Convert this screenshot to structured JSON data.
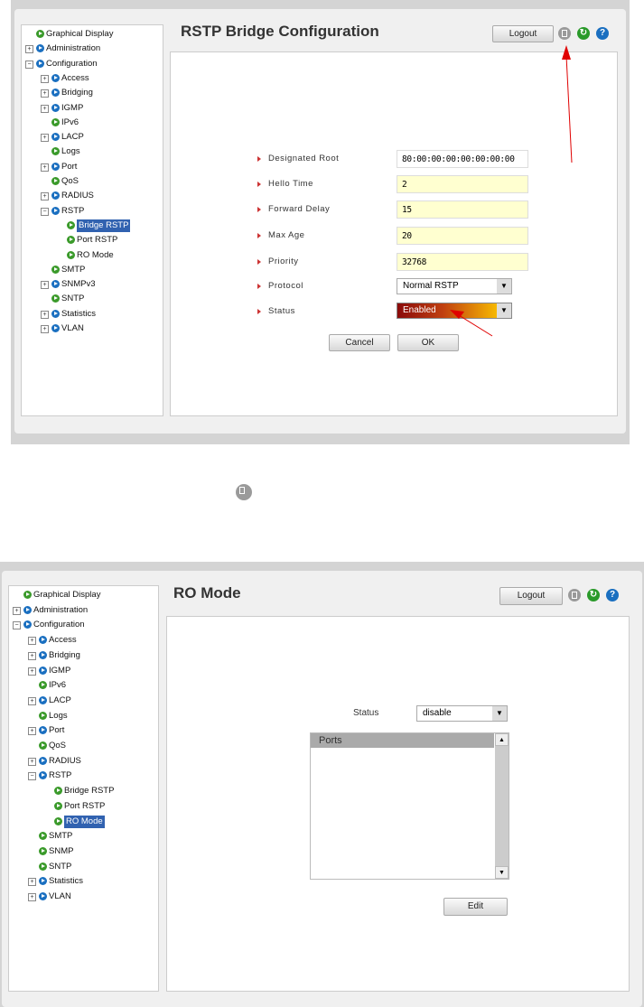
{
  "screen1": {
    "title": "RSTP Bridge Configuration",
    "logout": "Logout",
    "tree": [
      {
        "label": "Graphical Display",
        "level": 0,
        "exp": "",
        "color": "green"
      },
      {
        "label": "Administration",
        "level": 0,
        "exp": "+",
        "color": "blue"
      },
      {
        "label": "Configuration",
        "level": 0,
        "exp": "-",
        "color": "blue"
      },
      {
        "label": "Access",
        "level": 1,
        "exp": "+",
        "color": "blue"
      },
      {
        "label": "Bridging",
        "level": 1,
        "exp": "+",
        "color": "blue"
      },
      {
        "label": "IGMP",
        "level": 1,
        "exp": "+",
        "color": "blue"
      },
      {
        "label": "IPv6",
        "level": 1,
        "exp": "",
        "color": "green"
      },
      {
        "label": "LACP",
        "level": 1,
        "exp": "+",
        "color": "blue"
      },
      {
        "label": "Logs",
        "level": 1,
        "exp": "",
        "color": "green"
      },
      {
        "label": "Port",
        "level": 1,
        "exp": "+",
        "color": "blue"
      },
      {
        "label": "QoS",
        "level": 1,
        "exp": "",
        "color": "green"
      },
      {
        "label": "RADIUS",
        "level": 1,
        "exp": "+",
        "color": "blue"
      },
      {
        "label": "RSTP",
        "level": 1,
        "exp": "-",
        "color": "blue"
      },
      {
        "label": "Bridge RSTP",
        "level": 2,
        "exp": "",
        "color": "green",
        "selected": true
      },
      {
        "label": "Port RSTP",
        "level": 2,
        "exp": "",
        "color": "green"
      },
      {
        "label": "RO Mode",
        "level": 2,
        "exp": "",
        "color": "green"
      },
      {
        "label": "SMTP",
        "level": 1,
        "exp": "",
        "color": "green"
      },
      {
        "label": "SNMPv3",
        "level": 1,
        "exp": "+",
        "color": "blue"
      },
      {
        "label": "SNTP",
        "level": 1,
        "exp": "",
        "color": "green"
      },
      {
        "label": "Statistics",
        "level": 1,
        "exp": "+",
        "color": "blue"
      },
      {
        "label": "VLAN",
        "level": 1,
        "exp": "+",
        "color": "blue"
      }
    ],
    "fields": [
      {
        "label": "Designated Root",
        "value": "80:00:00:00:00:00:00:00",
        "readonly": true
      },
      {
        "label": "Hello Time",
        "value": "2"
      },
      {
        "label": "Forward Delay",
        "value": "15"
      },
      {
        "label": "Max Age",
        "value": "20"
      },
      {
        "label": "Priority",
        "value": "32768"
      }
    ],
    "protocol": {
      "label": "Protocol",
      "value": "Normal RSTP"
    },
    "status": {
      "label": "Status",
      "value": "Enabled"
    },
    "cancel": "Cancel",
    "ok": "OK"
  },
  "screen2": {
    "title": "RO Mode",
    "logout": "Logout",
    "tree": [
      {
        "label": "Graphical Display",
        "level": 0,
        "exp": "",
        "color": "green"
      },
      {
        "label": "Administration",
        "level": 0,
        "exp": "+",
        "color": "blue"
      },
      {
        "label": "Configuration",
        "level": 0,
        "exp": "-",
        "color": "blue"
      },
      {
        "label": "Access",
        "level": 1,
        "exp": "+",
        "color": "blue"
      },
      {
        "label": "Bridging",
        "level": 1,
        "exp": "+",
        "color": "blue"
      },
      {
        "label": "IGMP",
        "level": 1,
        "exp": "+",
        "color": "blue"
      },
      {
        "label": "IPv6",
        "level": 1,
        "exp": "",
        "color": "green"
      },
      {
        "label": "LACP",
        "level": 1,
        "exp": "+",
        "color": "blue"
      },
      {
        "label": "Logs",
        "level": 1,
        "exp": "",
        "color": "green"
      },
      {
        "label": "Port",
        "level": 1,
        "exp": "+",
        "color": "blue"
      },
      {
        "label": "QoS",
        "level": 1,
        "exp": "",
        "color": "green"
      },
      {
        "label": "RADIUS",
        "level": 1,
        "exp": "+",
        "color": "blue"
      },
      {
        "label": "RSTP",
        "level": 1,
        "exp": "-",
        "color": "blue"
      },
      {
        "label": "Bridge RSTP",
        "level": 2,
        "exp": "",
        "color": "green"
      },
      {
        "label": "Port RSTP",
        "level": 2,
        "exp": "",
        "color": "green"
      },
      {
        "label": "RO Mode",
        "level": 2,
        "exp": "",
        "color": "green",
        "selected": true
      },
      {
        "label": "SMTP",
        "level": 1,
        "exp": "",
        "color": "green"
      },
      {
        "label": "SNMP",
        "level": 1,
        "exp": "",
        "color": "green"
      },
      {
        "label": "SNTP",
        "level": 1,
        "exp": "",
        "color": "green"
      },
      {
        "label": "Statistics",
        "level": 1,
        "exp": "+",
        "color": "blue"
      },
      {
        "label": "VLAN",
        "level": 1,
        "exp": "+",
        "color": "blue"
      }
    ],
    "status": {
      "label": "Status",
      "value": "disable"
    },
    "ports_header": "Ports",
    "edit": "Edit"
  },
  "colors": {
    "green": "#3a9a2a",
    "blue": "#1a6fc0",
    "selected": "#3162b0",
    "annotation": "#e00000"
  }
}
